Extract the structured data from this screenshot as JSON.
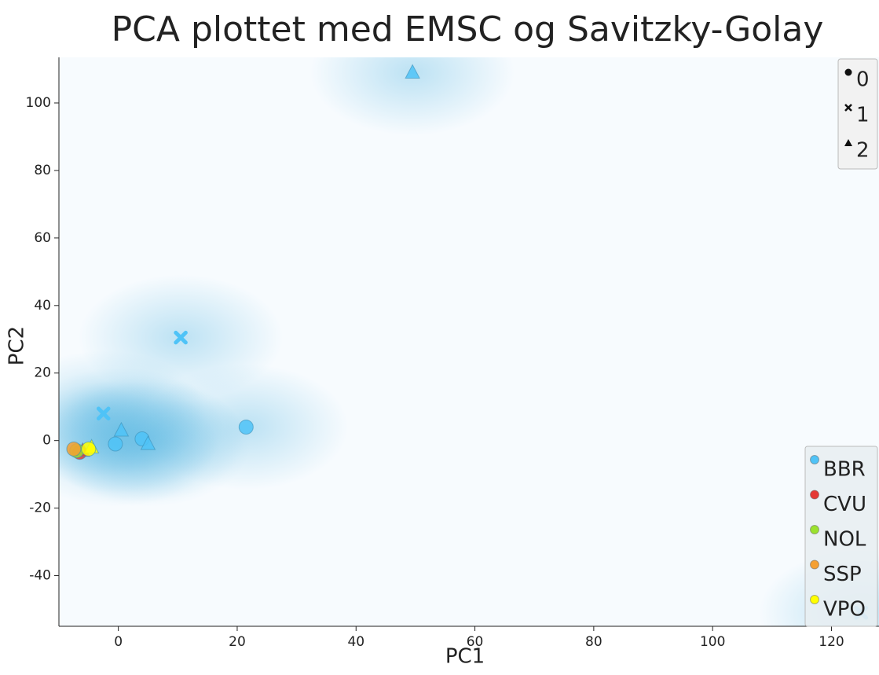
{
  "chart_data": {
    "type": "scatter",
    "title": "PCA plottet med EMSC og Savitzky-Golay",
    "x_label": "PC1",
    "y_label": "PC2",
    "xlim": [
      -10,
      128
    ],
    "ylim": [
      -55,
      113.5
    ],
    "xticks": [
      0,
      20,
      40,
      60,
      80,
      100,
      120
    ],
    "yticks": [
      -40,
      -20,
      0,
      20,
      40,
      60,
      80,
      100
    ],
    "marker_legend": [
      "0",
      "1",
      "2"
    ],
    "marker_shapes": [
      "circle",
      "x",
      "triangle"
    ],
    "series": [
      {
        "name": "BBR",
        "color": "#4fc3f7",
        "x": [
          21.5,
          4,
          -0.5,
          10.5,
          -2.5,
          125,
          49.5,
          0.5,
          5
        ],
        "y": [
          4,
          0.5,
          -1,
          30.5,
          8,
          -51,
          109,
          3,
          -1
        ],
        "markers": [
          "0",
          "0",
          "0",
          "1",
          "1",
          "1",
          "2",
          "2",
          "2"
        ]
      },
      {
        "name": "CVU",
        "color": "#e53935",
        "x": [
          -6.5,
          -6
        ],
        "y": [
          -3.5,
          -3
        ],
        "markers": [
          "0",
          "2"
        ]
      },
      {
        "name": "NOL",
        "color": "#9be22e",
        "x": [
          -7
        ],
        "y": [
          -3
        ],
        "markers": [
          "0"
        ]
      },
      {
        "name": "SSP",
        "color": "#f5a033",
        "x": [
          -7.5
        ],
        "y": [
          -2.5
        ],
        "markers": [
          "0"
        ]
      },
      {
        "name": "VPO",
        "color": "#ffff00",
        "x": [
          -4.5,
          -5
        ],
        "y": [
          -2,
          -2.5
        ],
        "markers": [
          "2",
          "0"
        ]
      }
    ]
  }
}
